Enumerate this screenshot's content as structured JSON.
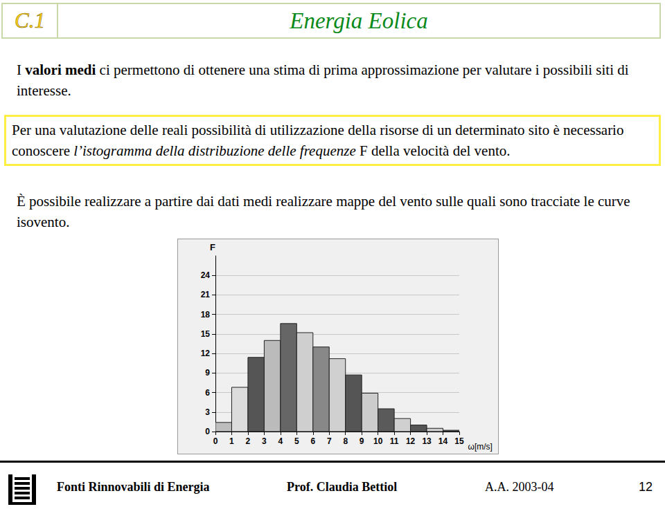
{
  "header": {
    "code": "C.1",
    "title": "Energia Eolica"
  },
  "paragraphs": [
    {
      "boxed": false,
      "runs": [
        {
          "text": "I "
        },
        {
          "text": "valori medi",
          "style": "bold"
        },
        {
          "text": " ci permettono di ottenere una stima di prima approssimazione per valutare i possibili siti di interesse."
        }
      ]
    },
    {
      "boxed": true,
      "runs": [
        {
          "text": "Per una valutazione delle reali possibilità di utilizzazione della risorse di un determinato sito è necessario conoscere "
        },
        {
          "text": "l’istogramma della distribuzione delle frequenze",
          "style": "italic"
        },
        {
          "text": " F della velocità del vento."
        }
      ]
    },
    {
      "boxed": false,
      "runs": [
        {
          "text": "È possibile realizzare a partire dai dati medi realizzare mappe del vento sulle quali sono tracciate le curve isovento."
        }
      ]
    }
  ],
  "chart_data": {
    "type": "histogram",
    "bins": [
      0,
      1,
      2,
      3,
      4,
      5,
      6,
      7,
      8,
      9,
      10,
      11,
      12,
      13,
      14,
      15
    ],
    "values": [
      1.4,
      6.8,
      11.4,
      14.0,
      16.6,
      15.2,
      13.0,
      11.2,
      8.7,
      5.9,
      3.5,
      2.0,
      1.0,
      0.5,
      0.2
    ],
    "colors": [
      "#bdbdbd",
      "#dcdcdc",
      "#555555",
      "#bbbbbb",
      "#666666",
      "#cfcfcf",
      "#888888",
      "#d0d0d0",
      "#555555",
      "#cccccc",
      "#5a5a5a",
      "#d0d0d0",
      "#555555",
      "#cccccc",
      "#555555"
    ],
    "xlabel": "ω[m/s]",
    "ylabel": "F",
    "xlim": [
      0,
      15
    ],
    "xticks": [
      0,
      1,
      2,
      3,
      4,
      5,
      6,
      7,
      8,
      9,
      10,
      11,
      12,
      13,
      14,
      15
    ],
    "ylim": [
      0,
      27
    ],
    "yticks": [
      0,
      3,
      6,
      9,
      12,
      15,
      18,
      21,
      24
    ],
    "grid": true
  },
  "footer": {
    "course": "Fonti Rinnovabili di Energia",
    "author": "Prof. Claudia Bettiol",
    "year": "A.A. 2003-04",
    "page": "12"
  }
}
